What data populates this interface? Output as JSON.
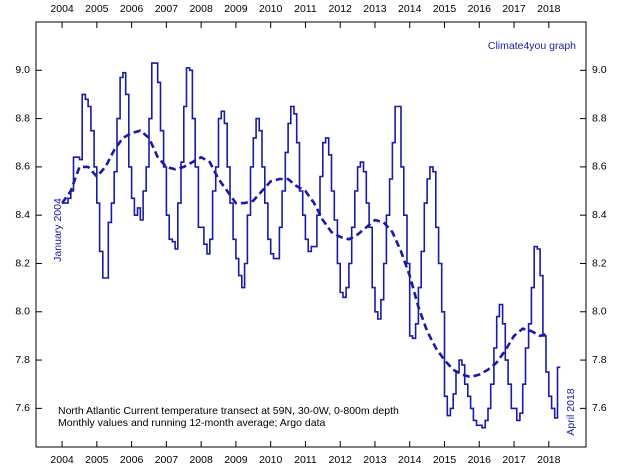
{
  "chart_data": {
    "type": "step-line",
    "annotations": {
      "source": "Climate4you graph",
      "start": "January 2004",
      "end": "April 2018",
      "caption_line1": "North Atlantic Current temperature transect at 59N, 30-0W, 0-800m depth",
      "caption_line2": "Monthly values and running 12-month average; Argo data"
    },
    "xlim": [
      2003.25,
      2019.07
    ],
    "ylim": [
      7.44,
      9.2
    ],
    "xticks": [
      2004,
      2005,
      2006,
      2007,
      2008,
      2009,
      2010,
      2011,
      2012,
      2013,
      2014,
      2015,
      2016,
      2017,
      2018
    ],
    "yticks": [
      7.6,
      7.8,
      {
        "value": 8,
        "label": "8.0"
      },
      8.2,
      8.4,
      8.6,
      8.8,
      {
        "value": 9,
        "label": "9.0"
      }
    ],
    "series": [
      {
        "style": "step",
        "color": "#1a1aa6",
        "x": [
          2004,
          2004.08,
          2004.17,
          2004.25,
          2004.33,
          2004.42,
          2004.5,
          2004.58,
          2004.67,
          2004.75,
          2004.83,
          2004.92,
          2005,
          2005.08,
          2005.17,
          2005.25,
          2005.33,
          2005.42,
          2005.5,
          2005.58,
          2005.67,
          2005.75,
          2005.83,
          2005.92,
          2006,
          2006.08,
          2006.17,
          2006.25,
          2006.33,
          2006.42,
          2006.5,
          2006.58,
          2006.67,
          2006.75,
          2006.83,
          2006.92,
          2007,
          2007.08,
          2007.17,
          2007.25,
          2007.33,
          2007.42,
          2007.5,
          2007.58,
          2007.67,
          2007.75,
          2007.83,
          2007.92,
          2008,
          2008.08,
          2008.17,
          2008.25,
          2008.33,
          2008.42,
          2008.5,
          2008.58,
          2008.67,
          2008.75,
          2008.83,
          2008.92,
          2009,
          2009.08,
          2009.17,
          2009.25,
          2009.33,
          2009.42,
          2009.5,
          2009.58,
          2009.67,
          2009.75,
          2009.83,
          2009.92,
          2010,
          2010.08,
          2010.17,
          2010.25,
          2010.33,
          2010.42,
          2010.5,
          2010.58,
          2010.67,
          2010.75,
          2010.83,
          2010.92,
          2011,
          2011.08,
          2011.17,
          2011.25,
          2011.33,
          2011.42,
          2011.5,
          2011.58,
          2011.67,
          2011.75,
          2011.83,
          2011.92,
          2012,
          2012.08,
          2012.17,
          2012.25,
          2012.33,
          2012.42,
          2012.5,
          2012.58,
          2012.67,
          2012.75,
          2012.83,
          2012.92,
          2013,
          2013.08,
          2013.17,
          2013.25,
          2013.33,
          2013.42,
          2013.5,
          2013.58,
          2013.67,
          2013.75,
          2013.83,
          2013.92,
          2014,
          2014.08,
          2014.17,
          2014.25,
          2014.33,
          2014.42,
          2014.5,
          2014.58,
          2014.67,
          2014.75,
          2014.83,
          2014.92,
          2015,
          2015.08,
          2015.17,
          2015.25,
          2015.33,
          2015.42,
          2015.5,
          2015.58,
          2015.67,
          2015.75,
          2015.83,
          2015.92,
          2016,
          2016.08,
          2016.17,
          2016.25,
          2016.33,
          2016.42,
          2016.5,
          2016.58,
          2016.67,
          2016.75,
          2016.83,
          2016.92,
          2017,
          2017.08,
          2017.17,
          2017.25,
          2017.33,
          2017.42,
          2017.5,
          2017.58,
          2017.67,
          2017.75,
          2017.83,
          2017.92,
          2018,
          2018.08,
          2018.17,
          2018.25
        ],
        "values": [
          8.45,
          8.45,
          8.47,
          8.5,
          8.64,
          8.64,
          8.63,
          8.9,
          8.88,
          8.85,
          8.75,
          8.6,
          8.45,
          8.25,
          8.14,
          8.14,
          8.37,
          8.45,
          8.58,
          8.8,
          8.97,
          8.99,
          8.9,
          8.6,
          8.47,
          8.4,
          8.43,
          8.38,
          8.5,
          8.6,
          8.8,
          9.03,
          9.03,
          8.95,
          8.75,
          8.6,
          8.4,
          8.3,
          8.29,
          8.26,
          8.45,
          8.62,
          8.85,
          9.01,
          9.0,
          8.8,
          8.6,
          8.35,
          8.35,
          8.28,
          8.24,
          8.3,
          8.5,
          8.6,
          8.8,
          8.83,
          8.78,
          8.6,
          8.45,
          8.3,
          8.22,
          8.15,
          8.1,
          8.2,
          8.4,
          8.6,
          8.72,
          8.8,
          8.75,
          8.6,
          8.45,
          8.3,
          8.24,
          8.22,
          8.22,
          8.35,
          8.5,
          8.66,
          8.78,
          8.85,
          8.82,
          8.7,
          8.5,
          8.4,
          8.3,
          8.25,
          8.27,
          8.27,
          8.4,
          8.56,
          8.7,
          8.72,
          8.65,
          8.5,
          8.38,
          8.2,
          8.08,
          8.06,
          8.1,
          8.2,
          8.35,
          8.5,
          8.6,
          8.62,
          8.58,
          8.45,
          8.35,
          8.1,
          8.0,
          7.97,
          8.05,
          8.2,
          8.4,
          8.55,
          8.7,
          8.85,
          8.85,
          8.6,
          8.4,
          8.2,
          7.9,
          7.89,
          7.95,
          8.1,
          8.25,
          8.45,
          8.55,
          8.6,
          8.58,
          8.35,
          8.2,
          8.0,
          7.65,
          7.57,
          7.6,
          7.66,
          7.75,
          7.8,
          7.78,
          7.7,
          7.65,
          7.6,
          7.55,
          7.53,
          7.53,
          7.52,
          7.55,
          7.6,
          7.7,
          7.85,
          7.98,
          8.03,
          7.95,
          7.8,
          7.7,
          7.6,
          7.6,
          7.55,
          7.58,
          7.7,
          7.85,
          7.95,
          8.1,
          8.27,
          8.26,
          8.15,
          7.9,
          7.75,
          7.65,
          7.6,
          7.56,
          7.77
        ]
      },
      {
        "style": "dashed",
        "color": "#1a1aa6",
        "x": [
          2004,
          2004.25,
          2004.5,
          2004.75,
          2005,
          2005.25,
          2005.5,
          2005.75,
          2006,
          2006.25,
          2006.5,
          2006.75,
          2007,
          2007.25,
          2007.5,
          2007.75,
          2008,
          2008.25,
          2008.5,
          2008.75,
          2009,
          2009.25,
          2009.5,
          2009.75,
          2010,
          2010.25,
          2010.5,
          2010.75,
          2011,
          2011.25,
          2011.5,
          2011.75,
          2012,
          2012.25,
          2012.5,
          2012.75,
          2013,
          2013.25,
          2013.5,
          2013.75,
          2014,
          2014.25,
          2014.5,
          2014.75,
          2015,
          2015.25,
          2015.5,
          2015.75,
          2016,
          2016.25,
          2016.5,
          2016.75,
          2017,
          2017.25,
          2017.5,
          2017.75,
          2018
        ],
        "values": [
          8.45,
          8.5,
          8.6,
          8.6,
          8.56,
          8.6,
          8.67,
          8.72,
          8.74,
          8.75,
          8.72,
          8.64,
          8.6,
          8.59,
          8.6,
          8.62,
          8.64,
          8.62,
          8.55,
          8.5,
          8.45,
          8.45,
          8.46,
          8.5,
          8.54,
          8.55,
          8.55,
          8.52,
          8.5,
          8.45,
          8.38,
          8.33,
          8.31,
          8.3,
          8.32,
          8.35,
          8.38,
          8.37,
          8.33,
          8.25,
          8.15,
          8.02,
          7.92,
          7.85,
          7.8,
          7.76,
          7.74,
          7.73,
          7.74,
          7.76,
          7.79,
          7.84,
          7.9,
          7.93,
          7.92,
          7.9,
          7.91
        ]
      }
    ]
  }
}
